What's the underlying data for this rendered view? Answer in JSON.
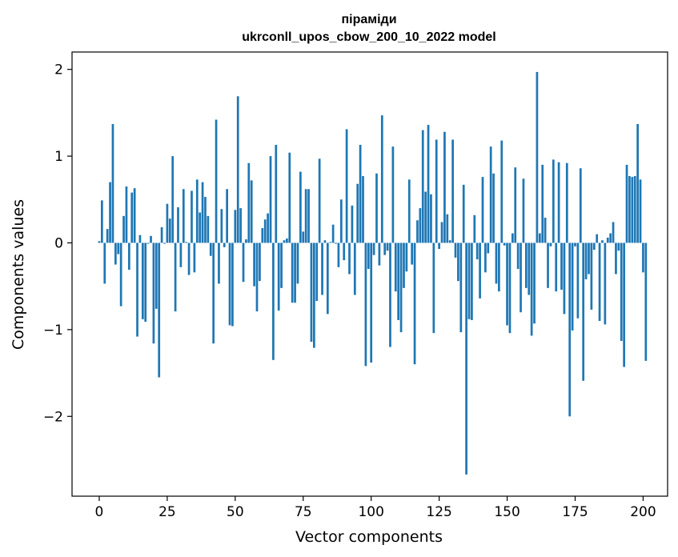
{
  "chart_data": {
    "type": "bar",
    "title_line1": "піраміди",
    "title_line2": "ukrconll_upos_cbow_200_10_2022 model",
    "xlabel": "Vector components",
    "ylabel": "Components values",
    "xlim": [
      -10,
      209
    ],
    "ylim": [
      -2.92,
      2.2
    ],
    "xticks": [
      0,
      25,
      50,
      75,
      100,
      125,
      150,
      175,
      200
    ],
    "yticks": [
      -2,
      -1,
      0,
      1,
      2
    ],
    "ytick_labels": [
      "−2",
      "−1",
      "0",
      "1",
      "2"
    ],
    "bar_color": "#1f77b4",
    "grid": false,
    "values": [
      0.02,
      0.49,
      -0.47,
      0.16,
      0.7,
      1.37,
      -0.25,
      -0.13,
      -0.73,
      0.31,
      0.65,
      -0.31,
      0.58,
      0.63,
      -1.08,
      0.09,
      -0.88,
      -0.91,
      -0.01,
      0.08,
      -1.16,
      -0.76,
      -1.55,
      0.18,
      -0.01,
      0.45,
      0.28,
      1.0,
      -0.79,
      0.41,
      -0.28,
      0.62,
      0.01,
      -0.37,
      0.6,
      -0.34,
      0.73,
      0.35,
      0.7,
      0.53,
      0.31,
      -0.15,
      -1.16,
      1.42,
      -0.47,
      0.39,
      -0.05,
      0.62,
      -0.95,
      -0.96,
      0.38,
      1.69,
      0.4,
      -0.45,
      0.04,
      0.92,
      0.72,
      -0.5,
      -0.79,
      -0.44,
      0.17,
      0.27,
      0.34,
      1.0,
      -1.35,
      1.13,
      -0.78,
      -0.52,
      0.03,
      0.05,
      1.04,
      -0.69,
      -0.69,
      -0.47,
      0.82,
      0.13,
      0.62,
      0.62,
      -1.14,
      -1.21,
      -0.67,
      0.97,
      -0.6,
      0.03,
      -0.82,
      0.01,
      0.21,
      -0.01,
      -0.28,
      0.5,
      -0.2,
      1.31,
      -0.36,
      0.43,
      -0.6,
      0.68,
      1.13,
      0.77,
      -1.42,
      -0.3,
      -1.38,
      -0.14,
      0.8,
      -0.26,
      1.47,
      -0.14,
      -0.09,
      -1.2,
      1.11,
      -0.56,
      -0.89,
      -1.03,
      -0.52,
      -0.33,
      0.73,
      -0.25,
      -1.4,
      0.26,
      0.4,
      1.3,
      0.59,
      1.36,
      0.56,
      -1.04,
      1.19,
      -0.07,
      0.24,
      1.28,
      0.33,
      0.03,
      1.19,
      -0.17,
      -0.44,
      -1.03,
      0.67,
      -2.67,
      -0.88,
      -0.89,
      0.32,
      -0.19,
      -0.64,
      0.76,
      -0.34,
      -0.12,
      1.11,
      0.8,
      -0.47,
      -0.56,
      1.18,
      -0.03,
      -0.95,
      -1.04,
      0.11,
      0.87,
      -0.3,
      -0.8,
      0.74,
      -0.52,
      -0.6,
      -1.07,
      -0.93,
      1.97,
      0.11,
      0.9,
      0.29,
      -0.52,
      -0.04,
      0.96,
      -0.56,
      0.93,
      -0.54,
      -0.82,
      0.92,
      -2.0,
      -1.01,
      -0.04,
      -0.87,
      0.86,
      -1.59,
      -0.42,
      -0.36,
      -0.77,
      -0.08,
      0.1,
      -0.9,
      0.03,
      -0.94,
      0.06,
      0.11,
      0.24,
      -0.36,
      -0.09,
      -1.13,
      -1.43,
      0.9,
      0.77,
      0.76,
      0.77,
      1.37,
      0.73,
      -0.34,
      -1.36
    ]
  }
}
